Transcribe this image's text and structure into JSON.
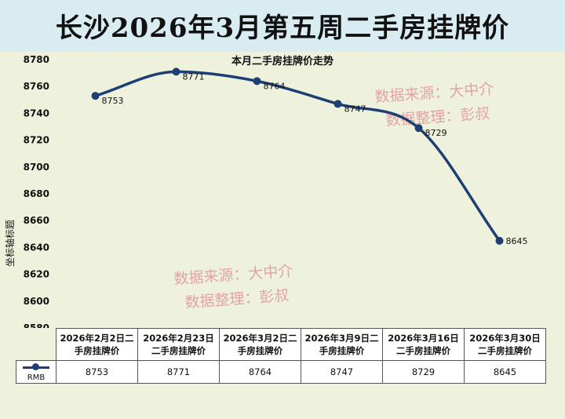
{
  "page": {
    "title": "长沙2026年3月第五周二手房挂牌价"
  },
  "watermark": {
    "line1": "数据来源：大中介",
    "line2": "数据整理：彭叔"
  },
  "colors": {
    "series": "#1f3f74",
    "background": "#eef2dd",
    "title_bar": "#d8ecf2",
    "watermark": "#e3a3a3"
  },
  "chart_data": {
    "type": "line",
    "title": "本月二手房挂牌价走势",
    "xlabel": "",
    "ylabel": "坐标轴标题",
    "ylim": [
      8580,
      8780
    ],
    "yticks": [
      8780,
      8760,
      8740,
      8720,
      8700,
      8680,
      8660,
      8640,
      8620,
      8600,
      8580
    ],
    "grid": false,
    "smooth": true,
    "legend": "data-table",
    "categories": [
      [
        "2026年2月2日二",
        "手房挂牌价"
      ],
      [
        "2026年2月23日",
        "二手房挂牌价"
      ],
      [
        "2026年3月2日二",
        "手房挂牌价"
      ],
      [
        "2026年3月9日二",
        "手房挂牌价"
      ],
      [
        "2026年3月16日",
        "二手房挂牌价"
      ],
      [
        "2026年3月30日",
        "二手房挂牌价"
      ]
    ],
    "series": [
      {
        "name": "RMB",
        "values": [
          8753,
          8771,
          8764,
          8747,
          8729,
          8645
        ]
      }
    ]
  }
}
